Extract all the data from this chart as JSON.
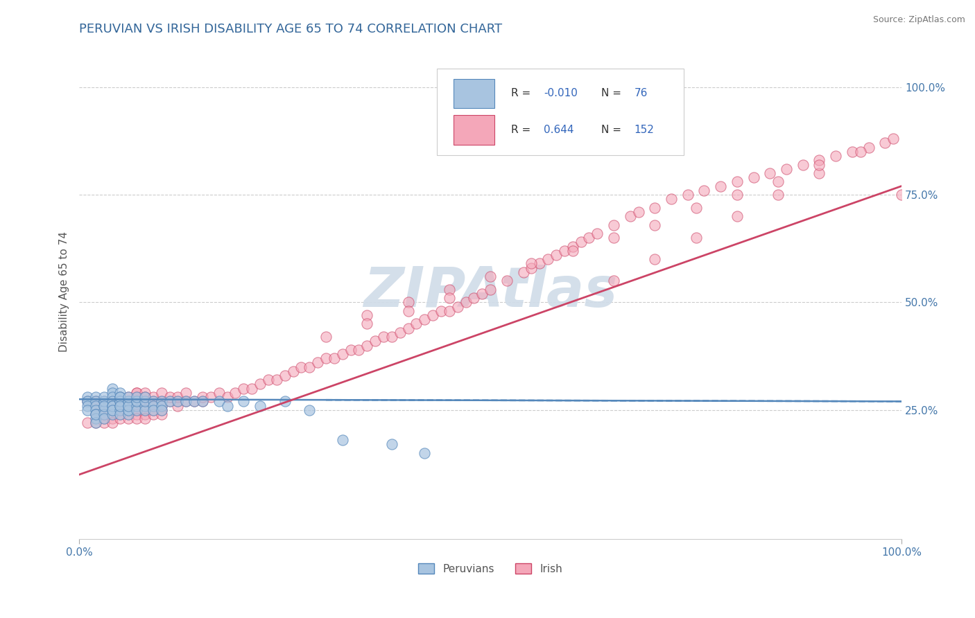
{
  "title": "PERUVIAN VS IRISH DISABILITY AGE 65 TO 74 CORRELATION CHART",
  "source_text": "Source: ZipAtlas.com",
  "ylabel": "Disability Age 65 to 74",
  "xlim": [
    0.0,
    1.0
  ],
  "ylim": [
    -0.05,
    1.1
  ],
  "r_peruvian": "-0.010",
  "n_peruvian": "76",
  "r_irish": "0.644",
  "n_irish": "152",
  "peruvian_color": "#a8c4e0",
  "irish_color": "#f4a7b9",
  "peruvian_line_color": "#5588bb",
  "irish_line_color": "#cc4466",
  "watermark_color": "#d0dce8",
  "title_color": "#336699",
  "title_fontsize": 13,
  "source_fontsize": 9,
  "axis_label_color": "#555555",
  "tick_label_color": "#4477aa",
  "grid_color": "#cccccc",
  "legend_r_color": "#3366bb",
  "peruvian_scatter_x": [
    0.01,
    0.01,
    0.01,
    0.01,
    0.01,
    0.02,
    0.02,
    0.02,
    0.02,
    0.02,
    0.02,
    0.02,
    0.02,
    0.03,
    0.03,
    0.03,
    0.03,
    0.03,
    0.03,
    0.03,
    0.03,
    0.04,
    0.04,
    0.04,
    0.04,
    0.04,
    0.04,
    0.04,
    0.04,
    0.04,
    0.05,
    0.05,
    0.05,
    0.05,
    0.05,
    0.05,
    0.05,
    0.05,
    0.05,
    0.06,
    0.06,
    0.06,
    0.06,
    0.06,
    0.06,
    0.06,
    0.06,
    0.07,
    0.07,
    0.07,
    0.07,
    0.07,
    0.08,
    0.08,
    0.08,
    0.08,
    0.09,
    0.09,
    0.09,
    0.1,
    0.1,
    0.1,
    0.11,
    0.12,
    0.13,
    0.14,
    0.15,
    0.17,
    0.18,
    0.2,
    0.22,
    0.25,
    0.28,
    0.32,
    0.38,
    0.42
  ],
  "peruvian_scatter_y": [
    0.27,
    0.28,
    0.27,
    0.26,
    0.25,
    0.28,
    0.27,
    0.26,
    0.25,
    0.24,
    0.23,
    0.22,
    0.24,
    0.27,
    0.26,
    0.25,
    0.24,
    0.23,
    0.27,
    0.28,
    0.26,
    0.3,
    0.29,
    0.28,
    0.27,
    0.26,
    0.25,
    0.24,
    0.26,
    0.25,
    0.29,
    0.28,
    0.27,
    0.26,
    0.25,
    0.24,
    0.27,
    0.28,
    0.26,
    0.27,
    0.26,
    0.25,
    0.24,
    0.27,
    0.25,
    0.26,
    0.28,
    0.27,
    0.26,
    0.25,
    0.27,
    0.28,
    0.26,
    0.25,
    0.27,
    0.28,
    0.27,
    0.26,
    0.25,
    0.27,
    0.26,
    0.25,
    0.27,
    0.27,
    0.27,
    0.27,
    0.27,
    0.27,
    0.26,
    0.27,
    0.26,
    0.27,
    0.25,
    0.18,
    0.17,
    0.15
  ],
  "irish_scatter_x": [
    0.01,
    0.01,
    0.02,
    0.02,
    0.02,
    0.02,
    0.03,
    0.03,
    0.03,
    0.03,
    0.03,
    0.04,
    0.04,
    0.04,
    0.04,
    0.04,
    0.05,
    0.05,
    0.05,
    0.05,
    0.05,
    0.05,
    0.06,
    0.06,
    0.06,
    0.06,
    0.06,
    0.06,
    0.07,
    0.07,
    0.07,
    0.07,
    0.07,
    0.07,
    0.07,
    0.07,
    0.08,
    0.08,
    0.08,
    0.08,
    0.08,
    0.08,
    0.08,
    0.09,
    0.09,
    0.09,
    0.09,
    0.09,
    0.1,
    0.1,
    0.1,
    0.1,
    0.1,
    0.11,
    0.11,
    0.12,
    0.12,
    0.12,
    0.13,
    0.13,
    0.14,
    0.15,
    0.15,
    0.16,
    0.17,
    0.18,
    0.19,
    0.2,
    0.21,
    0.22,
    0.23,
    0.24,
    0.25,
    0.26,
    0.27,
    0.28,
    0.29,
    0.3,
    0.31,
    0.32,
    0.33,
    0.34,
    0.35,
    0.36,
    0.37,
    0.38,
    0.39,
    0.4,
    0.41,
    0.42,
    0.43,
    0.44,
    0.45,
    0.46,
    0.47,
    0.48,
    0.49,
    0.5,
    0.52,
    0.54,
    0.55,
    0.56,
    0.57,
    0.58,
    0.59,
    0.6,
    0.61,
    0.62,
    0.63,
    0.65,
    0.67,
    0.68,
    0.7,
    0.72,
    0.74,
    0.76,
    0.78,
    0.8,
    0.82,
    0.84,
    0.86,
    0.88,
    0.9,
    0.92,
    0.94,
    0.96,
    0.98,
    0.99,
    1.0,
    0.65,
    0.7,
    0.75,
    0.8,
    0.85,
    0.9,
    0.95,
    0.35,
    0.4,
    0.45,
    0.5,
    0.55,
    0.6,
    0.65,
    0.7,
    0.75,
    0.8,
    0.85,
    0.9,
    0.3,
    0.35,
    0.4,
    0.45
  ],
  "irish_scatter_y": [
    0.27,
    0.22,
    0.27,
    0.26,
    0.22,
    0.24,
    0.27,
    0.25,
    0.23,
    0.22,
    0.24,
    0.27,
    0.26,
    0.24,
    0.23,
    0.22,
    0.27,
    0.26,
    0.25,
    0.24,
    0.23,
    0.28,
    0.27,
    0.26,
    0.25,
    0.24,
    0.23,
    0.28,
    0.27,
    0.26,
    0.25,
    0.24,
    0.23,
    0.29,
    0.28,
    0.29,
    0.27,
    0.26,
    0.25,
    0.24,
    0.23,
    0.29,
    0.28,
    0.27,
    0.26,
    0.25,
    0.24,
    0.28,
    0.27,
    0.26,
    0.25,
    0.24,
    0.29,
    0.27,
    0.28,
    0.27,
    0.26,
    0.28,
    0.27,
    0.29,
    0.27,
    0.27,
    0.28,
    0.28,
    0.29,
    0.28,
    0.29,
    0.3,
    0.3,
    0.31,
    0.32,
    0.32,
    0.33,
    0.34,
    0.35,
    0.35,
    0.36,
    0.37,
    0.37,
    0.38,
    0.39,
    0.39,
    0.4,
    0.41,
    0.42,
    0.42,
    0.43,
    0.44,
    0.45,
    0.46,
    0.47,
    0.48,
    0.48,
    0.49,
    0.5,
    0.51,
    0.52,
    0.53,
    0.55,
    0.57,
    0.58,
    0.59,
    0.6,
    0.61,
    0.62,
    0.63,
    0.64,
    0.65,
    0.66,
    0.68,
    0.7,
    0.71,
    0.72,
    0.74,
    0.75,
    0.76,
    0.77,
    0.78,
    0.79,
    0.8,
    0.81,
    0.82,
    0.83,
    0.84,
    0.85,
    0.86,
    0.87,
    0.88,
    0.75,
    0.55,
    0.6,
    0.65,
    0.7,
    0.75,
    0.8,
    0.85,
    0.47,
    0.5,
    0.53,
    0.56,
    0.59,
    0.62,
    0.65,
    0.68,
    0.72,
    0.75,
    0.78,
    0.82,
    0.42,
    0.45,
    0.48,
    0.51
  ],
  "peruvian_line_y0": 0.275,
  "peruvian_line_y1": 0.27,
  "irish_line_y0": 0.1,
  "irish_line_y1": 0.77
}
